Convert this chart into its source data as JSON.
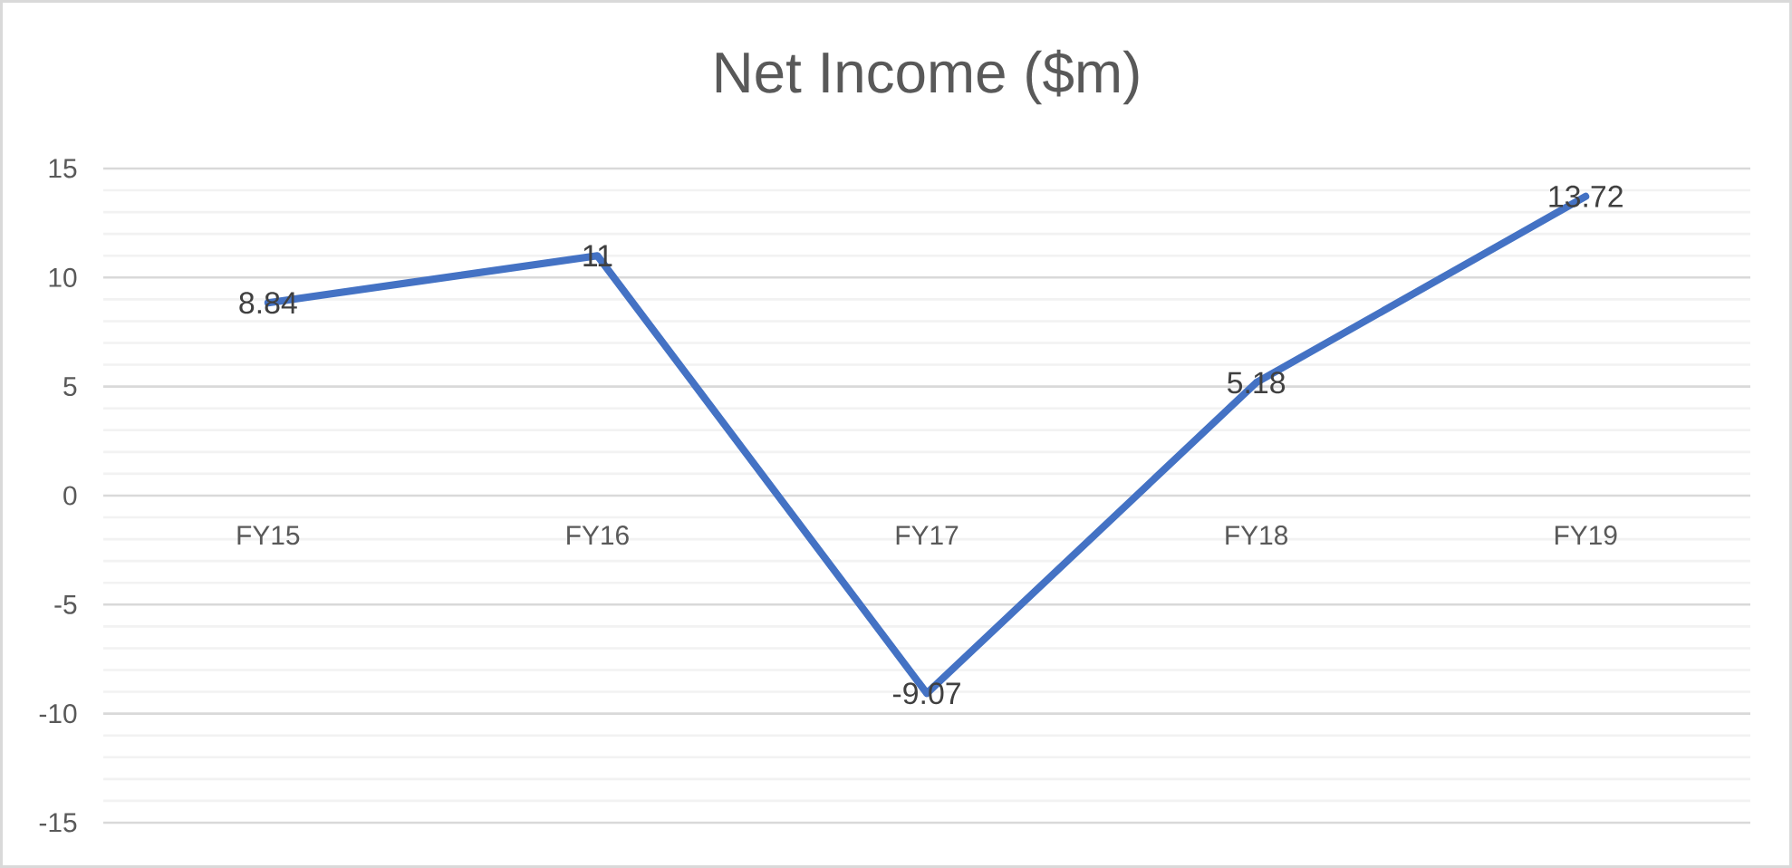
{
  "chart_data": {
    "type": "line",
    "title": "Net Income ($m)",
    "categories": [
      "FY15",
      "FY16",
      "FY17",
      "FY18",
      "FY19"
    ],
    "values": [
      8.84,
      11,
      -9.07,
      5.18,
      13.72
    ],
    "color": "#4472c4",
    "ylim": [
      -15,
      15
    ],
    "yticks": [
      -15,
      -10,
      -5,
      0,
      5,
      10,
      15
    ],
    "grid": "y",
    "data_labels": true,
    "line_style": "solid"
  }
}
